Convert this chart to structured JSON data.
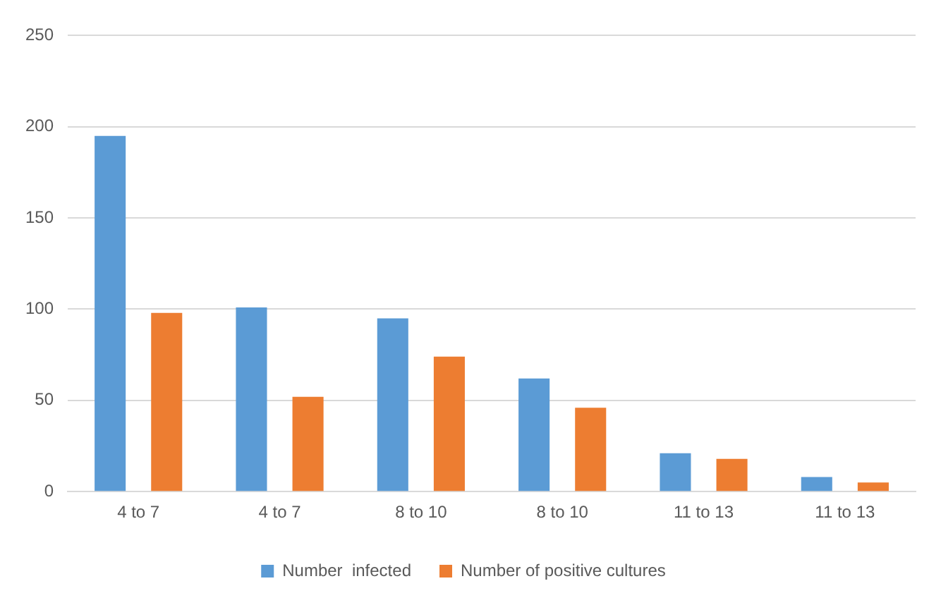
{
  "chart_data": {
    "type": "bar",
    "categories": [
      "4 to 7",
      "4 to 7",
      "8 to 10",
      "8 to 10",
      "11 to 13",
      "11 to 13"
    ],
    "series": [
      {
        "name": "Number  infected",
        "color": "#5b9bd5",
        "values": [
          195,
          101,
          95,
          62,
          21,
          8
        ]
      },
      {
        "name": "Number of positive cultures",
        "color": "#ed7d31",
        "values": [
          98,
          52,
          74,
          46,
          18,
          5
        ]
      }
    ],
    "ylim": [
      0,
      250
    ],
    "yticks": [
      0,
      50,
      100,
      150,
      200,
      250
    ],
    "grid": "y",
    "legend": "bottom"
  }
}
